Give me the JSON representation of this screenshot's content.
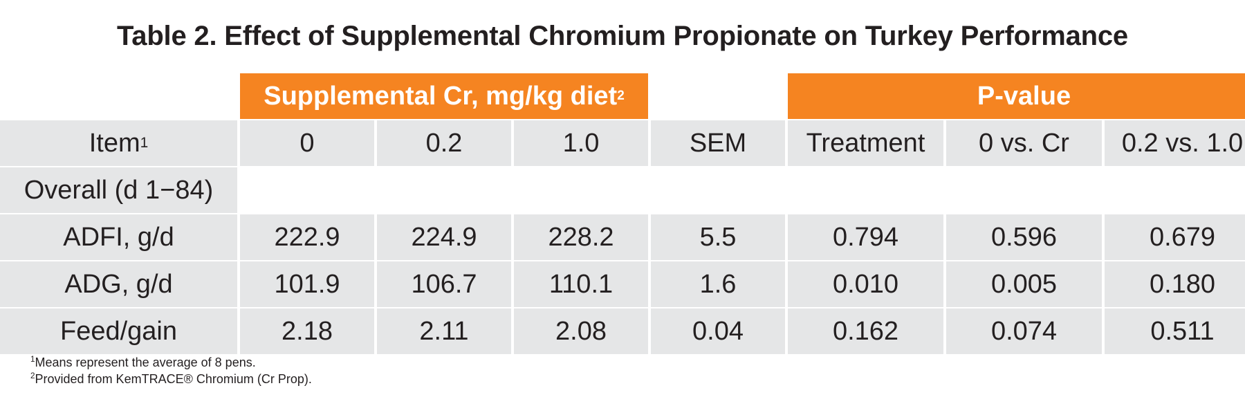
{
  "chart_data": {
    "type": "table",
    "title": "Table 2. Effect of Supplemental Chromium Propionate on Turkey Performance",
    "group_headers": {
      "supplemental_label": "Supplemental Cr, mg/kg diet",
      "supplemental_sup": "2",
      "pvalue_label": "P-value"
    },
    "columns": {
      "item_label": "Item",
      "item_sup": "1",
      "cr_0": "0",
      "cr_02": "0.2",
      "cr_10": "1.0",
      "sem": "SEM",
      "treatment": "Treatment",
      "zero_vs_cr": "0 vs. Cr",
      "low_vs_high": "0.2 vs. 1.0"
    },
    "section_label": "Overall (d 1−84)",
    "rows": [
      {
        "item": "ADFI, g/d",
        "values": [
          "222.9",
          "224.9",
          "228.2",
          "5.5",
          "0.794",
          "0.596",
          "0.679"
        ]
      },
      {
        "item": "ADG, g/d",
        "values": [
          "101.9",
          "106.7",
          "110.1",
          "1.6",
          "0.010",
          "0.005",
          "0.180"
        ]
      },
      {
        "item": "Feed/gain",
        "values": [
          "2.18",
          "2.11",
          "2.08",
          "0.04",
          "0.162",
          "0.074",
          "0.511"
        ]
      }
    ],
    "footnotes": [
      {
        "sup": "1",
        "text": "Means represent the average of 8 pens."
      },
      {
        "sup": "2",
        "text": "Provided from KemTRACE® Chromium (Cr Prop)."
      }
    ]
  },
  "colors": {
    "header_accent": "#f58421",
    "cell_background": "#e5e6e7",
    "text": "#231f20"
  }
}
